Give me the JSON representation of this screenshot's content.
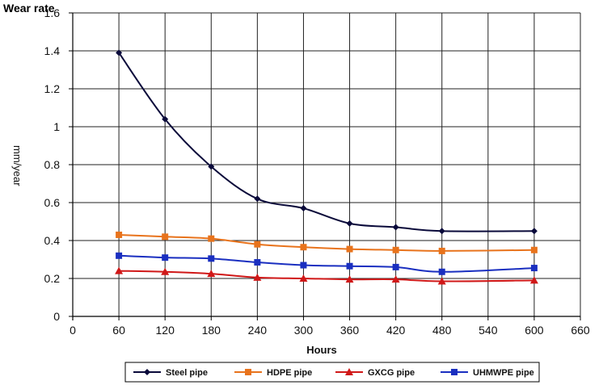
{
  "chart_data": {
    "type": "line",
    "title": "Wear rate",
    "xlabel": "Hours",
    "ylabel": "mm/year",
    "xlim": [
      0,
      660
    ],
    "ylim": [
      0,
      1.6
    ],
    "x_ticks": [
      "0",
      "60",
      "120",
      "180",
      "240",
      "300",
      "360",
      "420",
      "480",
      "540",
      "600",
      "660"
    ],
    "y_ticks": [
      "0",
      "0.2",
      "0.4",
      "0.6",
      "0.8",
      "1",
      "1.2",
      "1.4",
      "1.6"
    ],
    "grid": true,
    "legend_position": "bottom",
    "x": [
      60,
      120,
      180,
      240,
      300,
      360,
      420,
      480,
      600
    ],
    "series": [
      {
        "name": "Steel pipe",
        "color": "#0a0a3a",
        "marker": "diamond",
        "values": [
          1.39,
          1.04,
          0.79,
          0.62,
          0.57,
          0.49,
          0.47,
          0.45,
          0.45
        ]
      },
      {
        "name": "HDPE pipe",
        "color": "#e8731c",
        "marker": "square",
        "values": [
          0.43,
          0.42,
          0.41,
          0.38,
          0.365,
          0.355,
          0.35,
          0.345,
          0.35
        ]
      },
      {
        "name": "GXCG pipe",
        "color": "#d01818",
        "marker": "triangle",
        "values": [
          0.24,
          0.235,
          0.225,
          0.205,
          0.2,
          0.195,
          0.195,
          0.185,
          0.19
        ]
      },
      {
        "name": "UHMWPE pipe",
        "color": "#1a2fc0",
        "marker": "square",
        "values": [
          0.32,
          0.31,
          0.305,
          0.285,
          0.27,
          0.265,
          0.26,
          0.235,
          0.255
        ]
      }
    ]
  }
}
